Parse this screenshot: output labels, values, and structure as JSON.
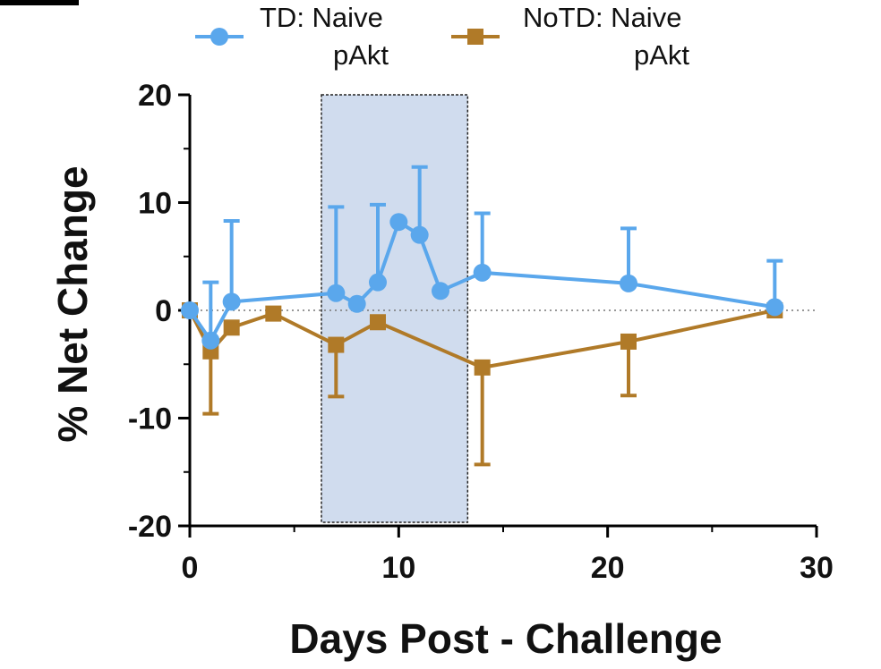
{
  "chart_data": {
    "type": "line",
    "xlabel": "Days Post - Challenge",
    "ylabel": "% Net Change",
    "xlim": [
      0,
      30
    ],
    "ylim": [
      -20,
      20
    ],
    "x_ticks": [
      "0",
      "10",
      "20",
      "30"
    ],
    "y_ticks": [
      "20",
      "10",
      "0",
      "-10",
      "-20"
    ],
    "grid": false,
    "reference_line_y": 0,
    "shaded_region": {
      "x_range": [
        6.3,
        13.3
      ]
    },
    "legend_position": "top",
    "series": [
      {
        "name": "TD: Naive pAkt",
        "name_lines": [
          "TD: Naive",
          "pAkt"
        ],
        "color": "#5aa7ec",
        "marker": "circle",
        "x": [
          0,
          1,
          2,
          7,
          8,
          9,
          10,
          11,
          12,
          14,
          21,
          28
        ],
        "y": [
          0,
          -2.8,
          0.8,
          1.6,
          0.6,
          2.6,
          8.2,
          7.0,
          1.8,
          3.5,
          2.5,
          0.3
        ],
        "error_upper": [
          0,
          2.6,
          8.3,
          9.6,
          null,
          9.8,
          null,
          13.3,
          null,
          9.0,
          7.6,
          4.6
        ]
      },
      {
        "name": "NoTD: Naive pAkt",
        "name_lines": [
          "NoTD: Naive",
          "pAkt"
        ],
        "color": "#b07a28",
        "marker": "square",
        "x": [
          0,
          1,
          2,
          4,
          7,
          9,
          14,
          21,
          28
        ],
        "y": [
          0,
          -3.8,
          -1.6,
          -0.3,
          -3.2,
          -1.1,
          -5.3,
          -2.9,
          0
        ],
        "error_lower": [
          0,
          -9.6,
          null,
          null,
          -8.0,
          null,
          -14.3,
          -7.9,
          null
        ]
      }
    ]
  }
}
